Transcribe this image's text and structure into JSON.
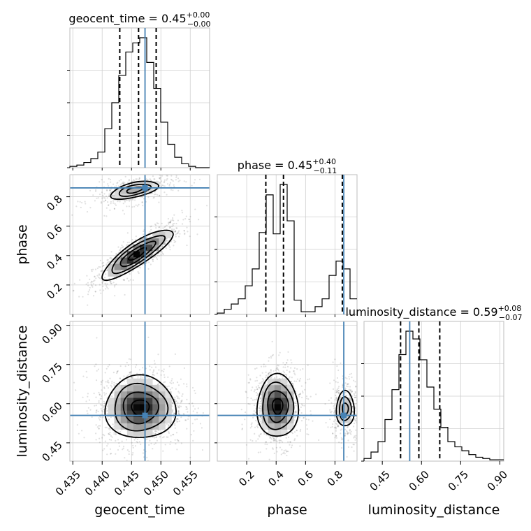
{
  "chart_data": {
    "type": "corner",
    "parameters": [
      {
        "name": "geocent_time",
        "label": "geocent_time",
        "title": "geocent_time = 0.45",
        "title_plus": "+0.00",
        "title_minus": "−0.00",
        "truth": 0.4473,
        "quantiles": [
          0.443,
          0.4462,
          0.4492
        ],
        "range": [
          0.4345,
          0.4583
        ],
        "ticks": [
          0.435,
          0.44,
          0.445,
          0.45,
          0.455
        ],
        "tick_labels": [
          "0.435",
          "0.440",
          "0.445",
          "0.450",
          "0.455"
        ],
        "hist": {
          "edges_start": 0.4345,
          "bin_width": 0.00119,
          "counts": [
            1,
            2,
            4,
            7,
            12,
            30,
            50,
            71,
            89,
            96,
            100,
            81,
            61,
            35,
            18,
            8,
            3,
            1,
            0,
            0
          ]
        }
      },
      {
        "name": "phase",
        "label": "phase",
        "title": "phase = 0.45",
        "title_plus": "+0.40",
        "title_minus": "−0.11",
        "truth": 0.86,
        "quantiles": [
          0.33,
          0.45,
          0.85
        ],
        "range": [
          0.0,
          0.95
        ],
        "ticks": [
          0.2,
          0.4,
          0.6,
          0.8
        ],
        "tick_labels": [
          "0.2",
          "0.4",
          "0.6",
          "0.8"
        ],
        "hist": {
          "edges_start": 0.0,
          "bin_width": 0.0475,
          "counts": [
            1,
            4,
            8,
            12,
            22,
            35,
            63,
            92,
            62,
            100,
            72,
            11,
            2,
            2,
            6,
            12,
            30,
            41,
            35,
            12
          ]
        }
      },
      {
        "name": "luminosity_distance",
        "label": "luminosity_distance",
        "title": "luminosity_distance = 0.59",
        "title_plus": "+0.08",
        "title_minus": "−0.07",
        "truth": 0.555,
        "quantiles": [
          0.52,
          0.59,
          0.67
        ],
        "range": [
          0.38,
          0.915
        ],
        "ticks": [
          0.45,
          0.6,
          0.75,
          0.9
        ],
        "tick_labels": [
          "0.45",
          "0.60",
          "0.75",
          "0.90"
        ],
        "hist": {
          "edges_start": 0.38,
          "bin_width": 0.02675,
          "counts": [
            2,
            7,
            15,
            32,
            55,
            82,
            100,
            94,
            78,
            57,
            40,
            26,
            15,
            11,
            8,
            5,
            3,
            2,
            1,
            1
          ]
        }
      }
    ],
    "pairs": [
      {
        "x": "geocent_time",
        "y": "phase",
        "modes": [
          {
            "cx": 0.446,
            "cy": 0.41,
            "sx": 0.003,
            "sy": 0.085,
            "rho": 0.85,
            "weight": 0.7
          },
          {
            "cx": 0.4455,
            "cy": 0.845,
            "sx": 0.003,
            "sy": 0.045,
            "rho": 0.55,
            "weight": 0.3
          }
        ]
      },
      {
        "x": "geocent_time",
        "y": "luminosity_distance",
        "modes": [
          {
            "cx": 0.4465,
            "cy": 0.585,
            "sx": 0.003,
            "sy": 0.06,
            "rho": 0.0,
            "weight": 1.0
          }
        ]
      },
      {
        "x": "phase",
        "y": "luminosity_distance",
        "modes": [
          {
            "cx": 0.41,
            "cy": 0.59,
            "sx": 0.07,
            "sy": 0.06,
            "rho": 0.0,
            "weight": 0.72
          },
          {
            "cx": 0.87,
            "cy": 0.58,
            "sx": 0.045,
            "sy": 0.05,
            "rho": 0.0,
            "weight": 0.28
          }
        ]
      }
    ],
    "truth_color": "#4682b4",
    "grid": true
  }
}
